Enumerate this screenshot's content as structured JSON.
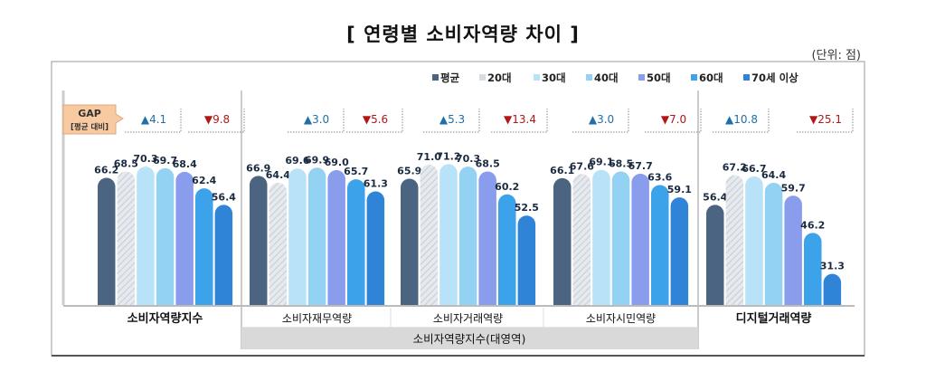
{
  "chart_data": {
    "type": "bar",
    "title": "[ 연령별 소비자역량 차이 ]",
    "unit_label": "(단위: 점)",
    "ylim": [
      20,
      75
    ],
    "grid": false,
    "legend_position": "top-right",
    "series_names": [
      "평균",
      "20대",
      "30대",
      "40대",
      "50대",
      "60대",
      "70세 이상"
    ],
    "series_colors": [
      "#4b6482",
      "#dde2e8",
      "#b8e2f8",
      "#93d2f3",
      "#8a9cec",
      "#3ca2ea",
      "#2f84d8"
    ],
    "categories": [
      "소비자역량지수",
      "소비자재무역량",
      "소비자거래역량",
      "소비자시민역량",
      "디지털거래역량"
    ],
    "values": [
      [
        66.2,
        68.5,
        70.3,
        69.7,
        68.4,
        62.4,
        56.4
      ],
      [
        66.9,
        64.4,
        69.6,
        69.9,
        69.0,
        65.7,
        61.3
      ],
      [
        65.9,
        71.0,
        71.2,
        70.3,
        68.5,
        60.2,
        52.5
      ],
      [
        66.1,
        67.6,
        69.1,
        68.5,
        67.7,
        63.6,
        59.1
      ],
      [
        56.4,
        67.2,
        66.7,
        64.4,
        59.7,
        46.2,
        31.3
      ]
    ],
    "gap_label": "GAP",
    "gap_sublabel": "[평균 대비]",
    "gaps": [
      {
        "up": "▲4.1",
        "down": "▼9.8"
      },
      {
        "up": "▲3.0",
        "down": "▼5.6"
      },
      {
        "up": "▲5.3",
        "down": "▼13.4"
      },
      {
        "up": "▲3.0",
        "down": "▼7.0"
      },
      {
        "up": "▲10.8",
        "down": "▼25.1"
      }
    ],
    "group_label": "소비자역량지수(대영역)"
  }
}
